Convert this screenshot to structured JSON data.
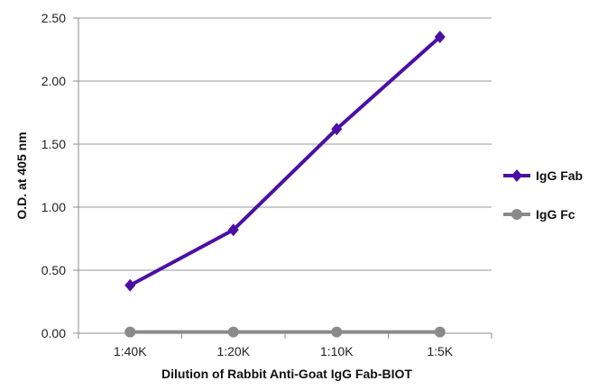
{
  "chart_data": {
    "type": "line",
    "title": "",
    "xlabel": "Dilution of Rabbit Anti-Goat IgG Fab-BIOT",
    "ylabel": "O.D. at 405 nm",
    "categories": [
      "1:40K",
      "1:20K",
      "1:10K",
      "1:5K"
    ],
    "ylim": [
      0,
      2.5
    ],
    "y_ticks": [
      "0.00",
      "0.50",
      "1.00",
      "1.50",
      "2.00",
      "2.50"
    ],
    "grid": true,
    "legend_position": "right",
    "series": [
      {
        "name": "IgG Fab",
        "values": [
          0.38,
          0.82,
          1.62,
          2.35
        ],
        "color": "#4b0fa6",
        "marker": "diamond"
      },
      {
        "name": "IgG Fc",
        "values": [
          0.01,
          0.01,
          0.01,
          0.01
        ],
        "color": "#8a8a8a",
        "marker": "circle"
      }
    ]
  }
}
